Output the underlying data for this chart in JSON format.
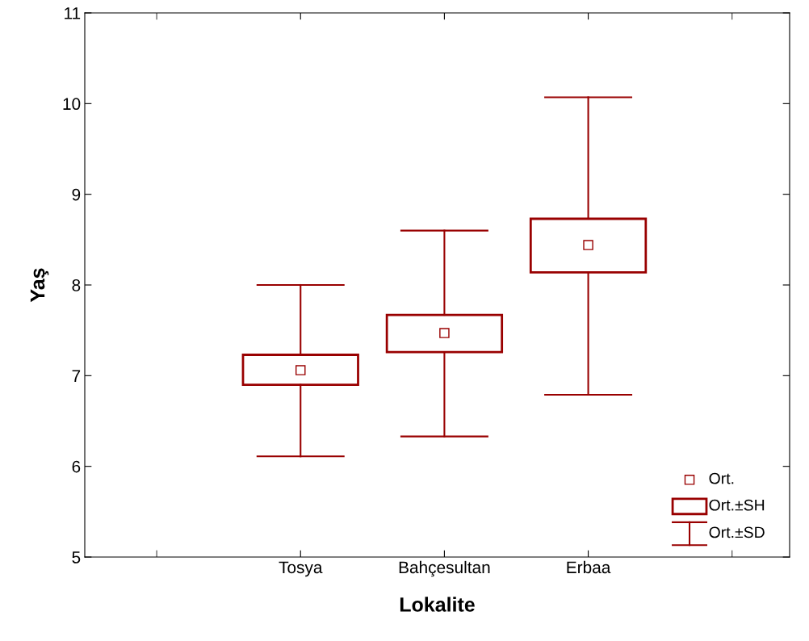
{
  "chart_data": {
    "type": "box",
    "xlabel": "Lokalite",
    "ylabel": "Yaş",
    "categories": [
      "Tosya",
      "Bahçesultan",
      "Erbaa"
    ],
    "boxes": [
      {
        "low": 6.11,
        "q1": 6.9,
        "q3": 7.23,
        "high": 8.0,
        "mean": 7.06
      },
      {
        "low": 6.33,
        "q1": 7.26,
        "q3": 7.67,
        "high": 8.6,
        "mean": 7.47
      },
      {
        "low": 6.79,
        "q1": 8.14,
        "q3": 8.73,
        "high": 10.07,
        "mean": 8.44
      }
    ],
    "color": "#990000",
    "ylim": [
      5,
      11
    ],
    "yticks": [
      5,
      6,
      7,
      8,
      9,
      10,
      11
    ],
    "grid": false,
    "marker": "square",
    "annotations": [
      "Ort.",
      "Ort.±SH",
      "Ort.±SD"
    ]
  }
}
